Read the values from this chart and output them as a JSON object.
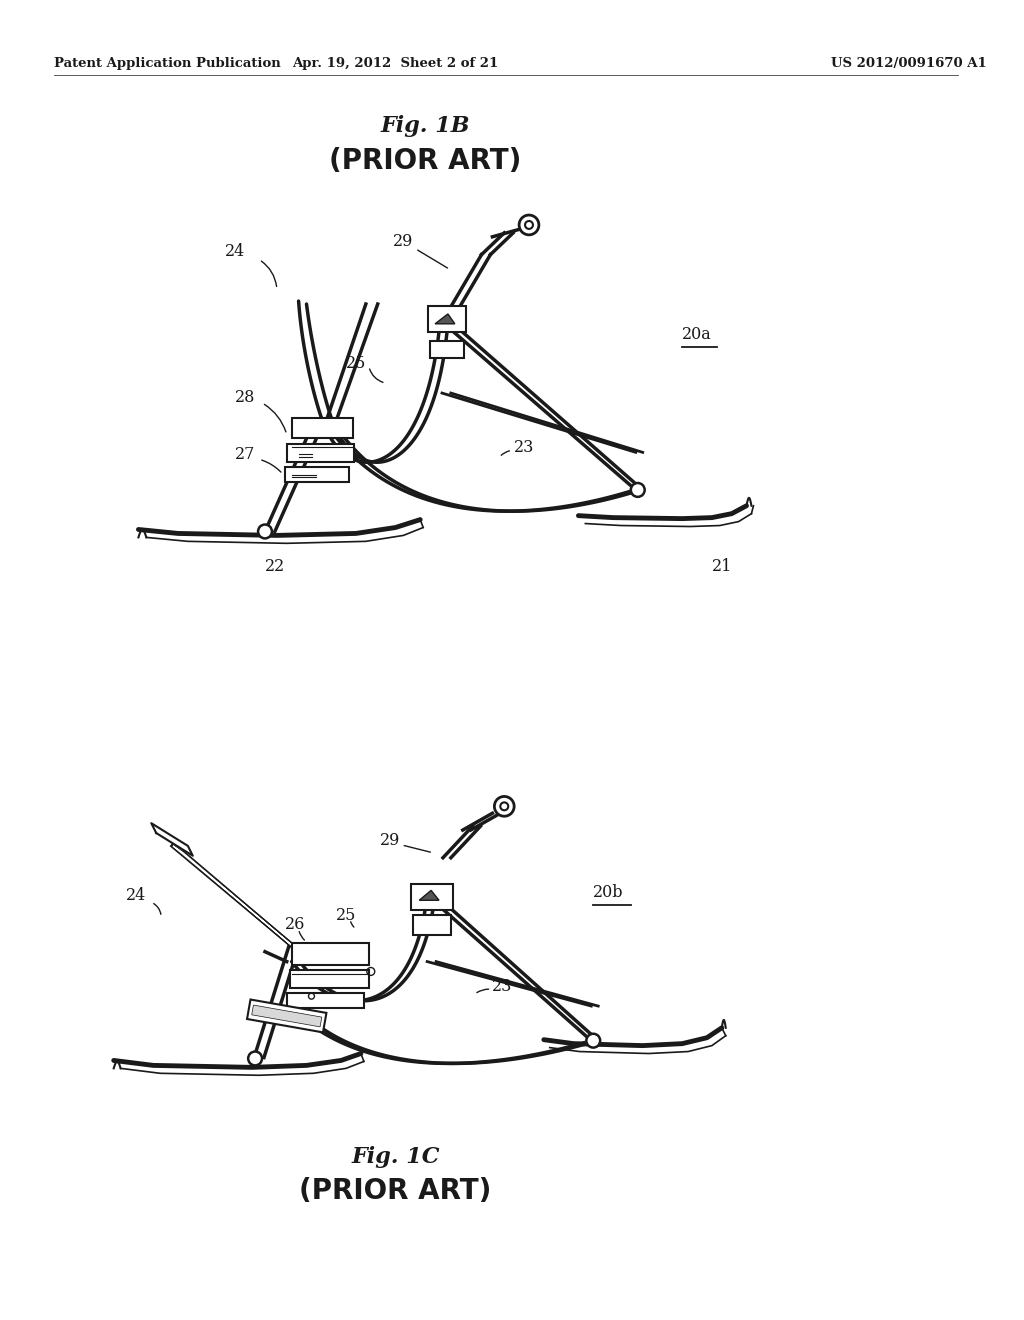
{
  "header_left": "Patent Application Publication",
  "header_center": "Apr. 19, 2012  Sheet 2 of 21",
  "header_right": "US 2012/0091670 A1",
  "fig1b_title": "Fig. 1B",
  "fig1b_subtitle": "(PRIOR ART)",
  "fig1c_title": "Fig. 1C",
  "fig1c_subtitle": "(PRIOR ART)",
  "label_20a": "20a",
  "label_20b": "20b",
  "background": "#ffffff",
  "line_color": "#1a1a1a",
  "text_color": "#1a1a1a",
  "header_fontsize": 9.5,
  "fig_title_fontsize": 16,
  "fig_subtitle_fontsize": 20,
  "label_fontsize": 11.5
}
